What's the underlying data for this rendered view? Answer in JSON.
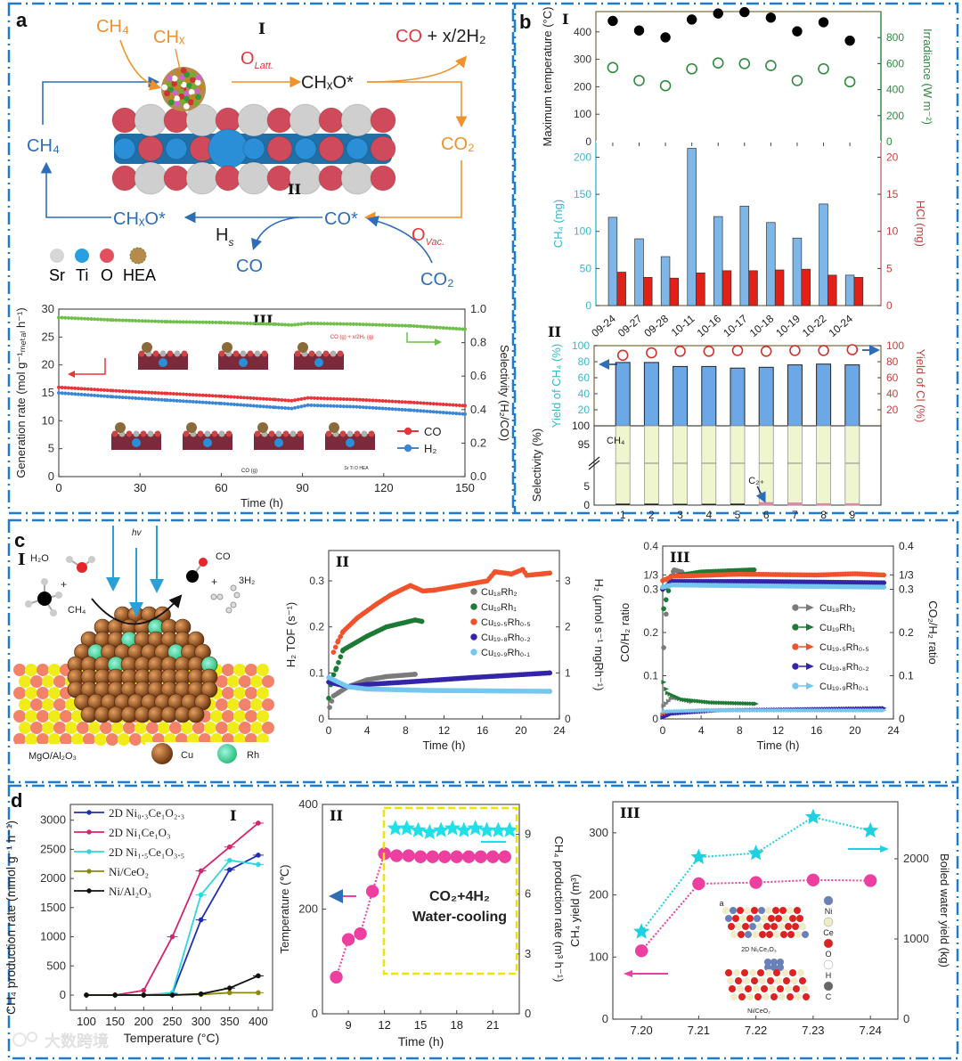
{
  "panel_labels": {
    "a": "a",
    "b": "b",
    "c": "c",
    "d": "d"
  },
  "watermark": "大数跨境",
  "diagram_a": {
    "roman_top": "I",
    "roman_mid": "II",
    "ch4_in": "CH₄",
    "chx": "CHₓ",
    "o_latt": "O",
    "o_latt_sub": "Latt.",
    "chxo_top": "CHₓO*",
    "products_co": "CO",
    "products_rest": " + x/2H₂",
    "co2_right": "CO₂",
    "ch4_left": "CH₄",
    "chxo_bottom": "CHₓO*",
    "co_star": "CO*",
    "hs": "H",
    "hs_sub": "s",
    "co_out": "CO",
    "o_vac": "O",
    "o_vac_sub": "Vac.",
    "co2_in": "CO₂",
    "legend": [
      "Sr",
      "Ti",
      "O",
      "HEA"
    ],
    "colors": {
      "orange": "#f0922b",
      "blue": "#2f6db5",
      "red": "#e0393e",
      "sr": "#c9c9c9",
      "ti": "#2a8fd6",
      "o": "#cf4a5a"
    }
  },
  "inset_a3": {
    "product_label": "CO (g) + x/2H₂ (g)",
    "co_gas": "CO (g)",
    "legend": "Sr Ti O HEA"
  },
  "diagram_c": {
    "roman": "I",
    "h2o": "H₂O",
    "ch4": "CH₄",
    "co": "CO",
    "h2": "3H₂",
    "plus": "+",
    "hv": "hv",
    "support": "MgO/Al₂O₃",
    "cu": "Cu",
    "rh": "Rh"
  },
  "annotation_d2": {
    "line1": "CO₂+4H₂",
    "line2": "Water-cooling"
  },
  "inset_d3": {
    "label": "a",
    "top_caption": "2D Ni₁Ce₁O₃",
    "bottom_caption": "Ni/CeO₂",
    "legend": [
      "Ni",
      "Ce",
      "O",
      "H",
      "C"
    ]
  },
  "chart_data": [
    {
      "id": "a3",
      "type": "line",
      "title": "III",
      "xlabel": "Time (h)",
      "ylabel": "Generation rate (mol g⁻¹ₘₑₜₐₗ h⁻¹)",
      "y2label": "Selectivity (H₂/CO)",
      "xlim": [
        0,
        150
      ],
      "ylim": [
        0,
        30
      ],
      "y2lim": [
        0,
        1.0
      ],
      "xticks": [
        0,
        30,
        60,
        90,
        120,
        150
      ],
      "yticks": [
        0,
        5,
        10,
        15,
        20,
        25,
        30
      ],
      "y2ticks": [
        "0.0",
        "0.2",
        "0.4",
        "0.6",
        "0.8",
        "1.0"
      ],
      "legend_position": "right",
      "series": [
        {
          "name": "CO",
          "axis": "left",
          "color": "#e8353a",
          "marker": "circle",
          "x": [
            0,
            20,
            40,
            60,
            80,
            86,
            92,
            110,
            130,
            150
          ],
          "y": [
            16.0,
            15.4,
            14.9,
            14.4,
            13.8,
            13.6,
            14.1,
            13.8,
            13.3,
            12.7
          ]
        },
        {
          "name": "H₂",
          "axis": "left",
          "color": "#3b87d6",
          "marker": "circle",
          "x": [
            0,
            20,
            40,
            60,
            80,
            86,
            92,
            110,
            130,
            150
          ],
          "y": [
            15.0,
            14.3,
            13.7,
            13.1,
            12.4,
            12.2,
            12.8,
            12.5,
            11.9,
            11.2
          ]
        },
        {
          "name": "Selectivity",
          "axis": "right",
          "color": "#6fbf4a",
          "marker": "circle",
          "legend": false,
          "x": [
            0,
            20,
            40,
            60,
            80,
            86,
            92,
            110,
            130,
            150
          ],
          "y": [
            0.95,
            0.935,
            0.925,
            0.92,
            0.91,
            0.905,
            0.915,
            0.91,
            0.9,
            0.88
          ]
        }
      ]
    },
    {
      "id": "b1",
      "type": "scatter",
      "title": "I",
      "ylabel": "Maximum temperature (°C)",
      "y2label": "Irradiance (W m⁻²)",
      "categories": [
        "09-24",
        "09-27",
        "09-28",
        "10-11",
        "10-16",
        "10-17",
        "10-18",
        "10-19",
        "10-22",
        "10-24"
      ],
      "ylim": [
        0,
        474
      ],
      "y2lim": [
        0,
        1000
      ],
      "yticks": [
        0,
        100,
        200,
        300,
        400
      ],
      "y2ticks": [
        0,
        200,
        400,
        600,
        800
      ],
      "series": [
        {
          "name": "Maximum temperature",
          "axis": "left",
          "color": "#000000",
          "marker": "circle",
          "fill": true,
          "values": [
            440,
            405,
            380,
            445,
            467,
            472,
            452,
            402,
            435,
            368
          ]
        },
        {
          "name": "Irradiance",
          "axis": "right",
          "color": "#2e8b3e",
          "marker": "circle",
          "fill": false,
          "values": [
            570,
            470,
            430,
            560,
            605,
            600,
            585,
            470,
            560,
            460
          ]
        }
      ]
    },
    {
      "id": "b2",
      "type": "bar",
      "ylabel": "CH₄ (mg)",
      "y2label": "HCl (mg)",
      "categories": [
        "09-24",
        "09-27",
        "09-28",
        "10-11",
        "10-16",
        "10-17",
        "10-18",
        "10-19",
        "10-22",
        "10-24"
      ],
      "ylim": [
        0,
        221
      ],
      "y2lim": [
        0,
        22.1
      ],
      "yticks": [
        0,
        50,
        100,
        150,
        200
      ],
      "y2ticks": [
        0,
        5,
        10,
        15,
        20
      ],
      "series": [
        {
          "name": "CH₄",
          "axis": "left",
          "color": "#7fb6e8",
          "values": [
            119,
            90,
            66,
            212,
            120,
            134,
            112,
            91,
            137,
            41
          ]
        },
        {
          "name": "HCl",
          "axis": "right",
          "color": "#e32018",
          "values": [
            4.5,
            3.8,
            3.7,
            4.4,
            4.7,
            4.7,
            4.8,
            4.9,
            4.1,
            3.8
          ]
        }
      ]
    },
    {
      "id": "b3",
      "type": "bar",
      "title": "II",
      "ylabel": "Yield of CH₄ (%)",
      "y2label": "Yield of Cl (%)",
      "selectivity_label": "Selectivity (%)",
      "categories": [
        "1",
        "2",
        "3",
        "4",
        "5",
        "6",
        "7",
        "8",
        "9"
      ],
      "ylim": [
        0,
        100
      ],
      "y2lim": [
        0,
        100
      ],
      "yticks": [
        20,
        40,
        60,
        80,
        100
      ],
      "y2ticks": [
        20,
        40,
        60,
        80,
        100
      ],
      "selectivity_ticks": [
        "100",
        "95",
        "5",
        "0"
      ],
      "annotations": {
        "ch4": "CH₄",
        "c2": "C₂₊"
      },
      "series": [
        {
          "name": "Yield of CH₄",
          "axis": "left",
          "color": "#6ba8e5",
          "values": [
            79,
            79,
            74,
            74,
            72,
            73,
            76,
            77,
            76
          ]
        },
        {
          "name": "Yield of Cl",
          "axis": "right",
          "color": "#d0342c",
          "marker": "open-circle",
          "values": [
            88,
            91,
            93,
            93,
            94,
            93,
            94,
            94,
            95
          ]
        },
        {
          "name": "CH₄ selectivity",
          "axis": "selectivity",
          "color": "#eef5cf",
          "values": [
            99.6,
            99.6,
            99.7,
            99.8,
            99.6,
            99.2,
            99.3,
            99.5,
            99.5
          ]
        },
        {
          "name": "C₂₊ selectivity",
          "axis": "selectivity",
          "color": "#d889a8",
          "values": [
            0.4,
            0.4,
            0.3,
            0.2,
            0.4,
            0.8,
            0.7,
            0.5,
            0.5
          ]
        }
      ]
    },
    {
      "id": "c2",
      "type": "scatter",
      "title": "II",
      "xlabel": "Time (h)",
      "ylabel": "H₂ TOF (s⁻¹)",
      "y2label": "H₂ (μmol s⁻¹ mgRh⁻¹)",
      "xlim": [
        0,
        24
      ],
      "ylim": [
        0,
        0.366
      ],
      "y2lim": [
        0,
        3.66
      ],
      "xticks": [
        0,
        4,
        8,
        12,
        16,
        20,
        24
      ],
      "yticks": [
        "0",
        "0.1",
        "0.2",
        "0.3"
      ],
      "y2ticks": [
        0,
        1,
        2,
        3
      ],
      "legend_position": "center-right",
      "series": [
        {
          "name": "Cu₁₈Rh₂",
          "color": "#7a7a7a",
          "x": [
            0.1,
            0.5,
            2,
            4,
            6,
            9
          ],
          "y": [
            0.025,
            0.05,
            0.07,
            0.085,
            0.092,
            0.097
          ]
        },
        {
          "name": "Cu₁₉Rh₁",
          "color": "#1d7a35",
          "x": [
            0,
            0.3,
            0.8,
            1.5,
            4,
            6,
            9,
            9.7
          ],
          "y": [
            0.045,
            0.085,
            0.11,
            0.15,
            0.18,
            0.2,
            0.215,
            0.212
          ]
        },
        {
          "name": "Cu₁₉.₅Rh₀.₅",
          "color": "#f0522c",
          "x": [
            0.5,
            1,
            1.5,
            3,
            5,
            6.5,
            8.5,
            9.8,
            11,
            16.5,
            17.3,
            19,
            20.2,
            20.6,
            23
          ],
          "y": [
            0.145,
            0.17,
            0.19,
            0.22,
            0.25,
            0.27,
            0.29,
            0.278,
            0.28,
            0.3,
            0.32,
            0.315,
            0.325,
            0.312,
            0.317
          ]
        },
        {
          "name": "Cu₁₉.₈Rh₀.₂",
          "color": "#3325a8",
          "x": [
            0,
            2,
            4,
            8,
            15,
            23
          ],
          "y": [
            0.08,
            0.07,
            0.075,
            0.08,
            0.09,
            0.1
          ]
        },
        {
          "name": "Cu₁₉.₉Rh₀.₁",
          "color": "#76c7ee",
          "x": [
            0,
            2,
            4,
            10,
            23
          ],
          "y": [
            0.09,
            0.07,
            0.065,
            0.062,
            0.06
          ]
        }
      ]
    },
    {
      "id": "c3",
      "type": "scatter",
      "title": "III",
      "xlabel": "Time (h)",
      "ylabel": "CO/H₂ ratio",
      "y2label": "CO₂/H₂ ratio",
      "xlim": [
        0,
        24
      ],
      "ylim": [
        0,
        0.4
      ],
      "y2lim": [
        0,
        0.4
      ],
      "xticks": [
        0,
        4,
        8,
        12,
        16,
        20,
        24
      ],
      "yticks": [
        0,
        0.1,
        0.2,
        0.3,
        0.3333,
        0.4
      ],
      "ytick_labels": [
        "0",
        "0.1",
        "0.2",
        "0.3",
        "1/3",
        "0.4"
      ],
      "legend_position": "center-right",
      "series": [
        {
          "name": "Cu₁₈Rh₂",
          "color": "#7a7a7a",
          "co_x": [
            0.1,
            0.6,
            1.2,
            2
          ],
          "co_y": [
            0.165,
            0.32,
            0.345,
            0.34
          ],
          "co2_x": [
            0.1,
            1,
            3
          ],
          "co2_y": [
            0.03,
            0.05,
            0.04
          ]
        },
        {
          "name": "Cu₁₉Rh₁",
          "color": "#1d7a35",
          "co_x": [
            0.1,
            1,
            4,
            9.5
          ],
          "co_y": [
            0.255,
            0.33,
            0.34,
            0.345
          ],
          "co2_x": [
            0.1,
            0.5,
            2,
            5,
            9.7
          ],
          "co2_y": [
            0.085,
            0.06,
            0.045,
            0.038,
            0.035
          ]
        },
        {
          "name": "Cu₁₉.₅Rh₀.₅",
          "color": "#f0522c",
          "co_x": [
            0,
            1,
            8,
            16,
            20,
            23
          ],
          "co_y": [
            0.32,
            0.33,
            0.335,
            0.333,
            0.336,
            0.333
          ],
          "co2_x": [
            0,
            1,
            5,
            23
          ],
          "co2_y": [
            0.01,
            0.015,
            0.02,
            0.02
          ]
        },
        {
          "name": "Cu₁₉.₈Rh₀.₂",
          "color": "#3325a8",
          "co_x": [
            0,
            1,
            10,
            23
          ],
          "co_y": [
            0.3,
            0.318,
            0.318,
            0.315
          ],
          "co2_x": [
            0,
            1,
            6,
            23
          ],
          "co2_y": [
            0.003,
            0.012,
            0.02,
            0.025
          ]
        },
        {
          "name": "Cu₁₉.₉Rh₀.₁",
          "color": "#76c7ee",
          "co_x": [
            0,
            1,
            23
          ],
          "co_y": [
            0.305,
            0.31,
            0.305
          ],
          "co2_x": [
            0.1,
            5,
            23
          ],
          "co2_y": [
            0.017,
            0.02,
            0.02
          ]
        }
      ]
    },
    {
      "id": "d1",
      "type": "line",
      "title": "I",
      "xlabel": "Temperature (°C)",
      "ylabel": "CH₄ production rate (mmol g⁻¹ h⁻¹)",
      "xlim": [
        72,
        425
      ],
      "ylim": [
        -260,
        3270
      ],
      "xticks": [
        100,
        150,
        200,
        250,
        300,
        350,
        400
      ],
      "yticks": [
        0,
        500,
        1000,
        1500,
        2000,
        2500,
        3000
      ],
      "legend_position": "top-left",
      "x": [
        100,
        150,
        200,
        250,
        300,
        350,
        400
      ],
      "series": [
        {
          "name": "2D Ni₀.₃Ce₁O₂.₃",
          "color": "#1f2fb0",
          "values": [
            0,
            0,
            0,
            20,
            1290,
            2150,
            2400
          ]
        },
        {
          "name": "2D Ni₁Ce₁O₃",
          "color": "#d6246e",
          "values": [
            0,
            0,
            80,
            1000,
            2130,
            2540,
            2950
          ]
        },
        {
          "name": "2D Ni₁.₅Ce₁O₃.₅",
          "color": "#2fd6df",
          "values": [
            0,
            0,
            0,
            40,
            1720,
            2310,
            2240
          ]
        },
        {
          "name": "Ni/CeO₂",
          "color": "#8a8a10",
          "values": [
            0,
            0,
            0,
            0,
            10,
            40,
            40
          ]
        },
        {
          "name": "Ni/Al₂O₃",
          "color": "#111111",
          "values": [
            0,
            0,
            0,
            0,
            20,
            120,
            330
          ]
        }
      ]
    },
    {
      "id": "d2",
      "type": "scatter",
      "title": "II",
      "xlabel": "Time (h)",
      "ylabel": "Temperature (℃)",
      "y2label": "CH₄ production rate (m³ h⁻¹)",
      "xlim": [
        6.85,
        23.2
      ],
      "ylim": [
        0,
        400
      ],
      "y2lim": [
        0,
        10.5
      ],
      "xticks": [
        9,
        12,
        15,
        18,
        21
      ],
      "yticks": [
        0,
        200,
        400
      ],
      "y2ticks": [
        0,
        3,
        6,
        9
      ],
      "series": [
        {
          "name": "Temperature",
          "axis": "left",
          "color": "#ec3fa0",
          "marker": "circle",
          "x": [
            8,
            9,
            10,
            11,
            12,
            13,
            14,
            15,
            16,
            17,
            18,
            19,
            20,
            21,
            22
          ],
          "y": [
            70,
            142,
            153,
            234,
            306,
            302,
            302,
            300,
            300,
            300,
            300,
            300,
            300,
            300,
            300
          ]
        },
        {
          "name": "CH₄ production rate",
          "axis": "right",
          "color": "#1fe0e8",
          "marker": "star",
          "x": [
            12.9,
            13.85,
            14.8,
            15.75,
            16.7,
            17.65,
            18.6,
            19.55,
            20.5,
            21.45,
            22.4
          ],
          "y": [
            9.3,
            9.3,
            9.2,
            9.1,
            9.2,
            9.3,
            9.2,
            9.3,
            9.2,
            9.2,
            9.2
          ]
        }
      ]
    },
    {
      "id": "d3",
      "type": "line",
      "title": "III",
      "ylabel": "CH₄ yield (m³)",
      "y2label": "Boiled water yield (kg)",
      "xlim": [
        7.195,
        7.2448
      ],
      "ylim": [
        0,
        350
      ],
      "y2lim": [
        0,
        2711
      ],
      "xticks": [
        "7.20",
        "7.21",
        "7.22",
        "7.23",
        "7.24"
      ],
      "yticks": [
        0,
        100,
        200,
        300
      ],
      "y2ticks": [
        0,
        1000,
        2000
      ],
      "series": [
        {
          "name": "CH₄ yield",
          "axis": "left",
          "color": "#ec3fa0",
          "marker": "circle",
          "x": [
            7.2,
            7.21,
            7.22,
            7.23,
            7.24
          ],
          "y": [
            110,
            218,
            220,
            224,
            223
          ]
        },
        {
          "name": "Boiled water yield",
          "axis": "right",
          "color": "#1fd0e0",
          "marker": "star",
          "x": [
            7.2,
            7.21,
            7.22,
            7.23,
            7.24
          ],
          "y": [
            1090,
            2020,
            2070,
            2520,
            2350
          ]
        }
      ]
    }
  ]
}
